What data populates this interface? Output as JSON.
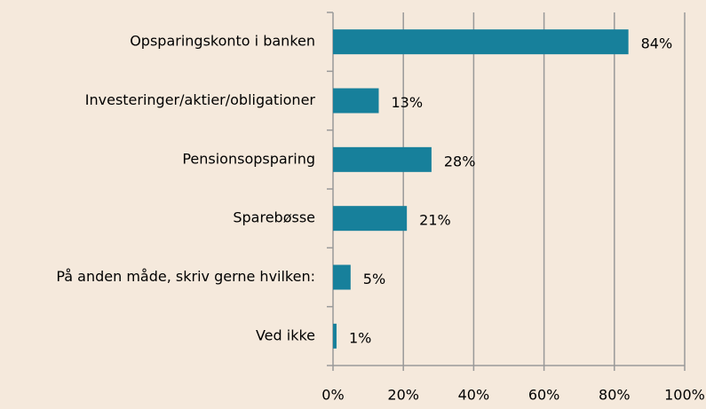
{
  "chart_data": {
    "type": "barh",
    "categories": [
      "Opsparingskonto i banken",
      "Investeringer/aktier/obligationer",
      "Pensionsopsparing",
      "Sparebøsse",
      "På anden måde, skriv gerne hvilken:",
      "Ved ikke"
    ],
    "values": [
      84,
      13,
      28,
      21,
      5,
      1
    ],
    "value_labels": [
      "84%",
      "13%",
      "28%",
      "21%",
      "5%",
      "1%"
    ],
    "color": "#17809b",
    "xlim": [
      0,
      100
    ],
    "xticks": [
      {
        "value": 0,
        "label": "0%"
      },
      {
        "value": 20,
        "label": "20%"
      },
      {
        "value": 40,
        "label": "40%"
      },
      {
        "value": 60,
        "label": "60%"
      },
      {
        "value": 80,
        "label": "80%"
      },
      {
        "value": 100,
        "label": "100%"
      }
    ],
    "grid": true
  }
}
